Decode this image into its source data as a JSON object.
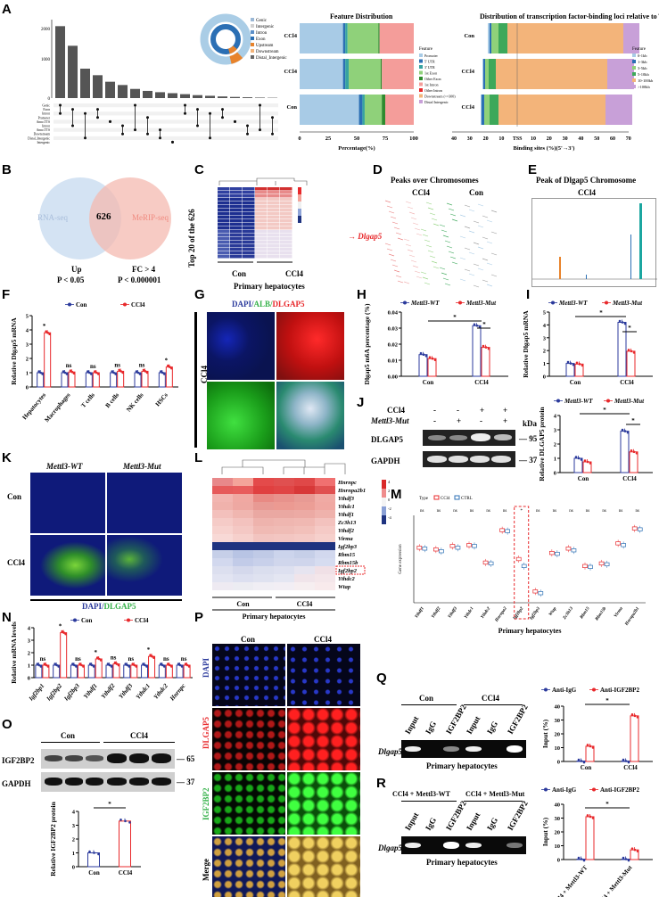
{
  "panel_letters": {
    "A": "A",
    "B": "B",
    "C": "C",
    "D": "D",
    "E": "E",
    "F": "F",
    "G": "G",
    "H": "H",
    "I": "I",
    "J": "J",
    "K": "K",
    "L": "L",
    "M": "M",
    "N": "N",
    "O": "O",
    "P": "P",
    "Q": "Q",
    "R": "R"
  },
  "colors": {
    "red": "#e8282b",
    "blue": "#2b3a9c",
    "green": "#36b24a",
    "cyan": "#1ba6a0",
    "salmon": "#f4a49a",
    "pink": "#f7c1bc",
    "lightblue": "#aacde6",
    "navy": "#1f3380"
  },
  "A": {
    "upset_yticks": [
      "2000",
      "1000",
      "0"
    ],
    "upset_rows": [
      "Genic",
      "Exon",
      "Intron",
      "Promoter",
      "Anno.TTS",
      "Intron",
      "Anno.TTS",
      "Downstream",
      "Distal_Intergenic",
      "Intergenic"
    ],
    "donut_legend": [
      "Genic",
      "Intergenic",
      "Intron",
      "Exon",
      "Upstream",
      "Downstream",
      "Distal_Intergenic"
    ],
    "fd_title": "Feature Distribution",
    "fd_rows": [
      "CCl4",
      "CCl4",
      "Con"
    ],
    "fd_xticks": [
      "0",
      "25",
      "50",
      "75",
      "100"
    ],
    "fd_xlabel": "Percentage(%)",
    "fd_legend_title": "Feature",
    "fd_legend": [
      "Promoter",
      "5' UTR",
      "3' UTR",
      "1st Exon",
      "Other Exon",
      "1st Intron",
      "Other Intron",
      "Downstream (<=300)",
      "Distal Intergenic"
    ],
    "tss_title": "Distribution of transcription factor-binding loci relative to TSS",
    "tss_rows": [
      "Con",
      "CCl4",
      "CCl4"
    ],
    "tss_xticks": [
      "40",
      "30",
      "20",
      "10",
      "TSS",
      "10",
      "20",
      "30",
      "40",
      "50",
      "60",
      "70"
    ],
    "tss_xlabel": "Binding sites (%)(5'→3')",
    "tss_legend_title": "Feature",
    "tss_legend": [
      "0-1kb",
      "1-3kb",
      "3-5kb",
      "5-10kb",
      "10-100kb",
      ">100kb"
    ]
  },
  "B": {
    "left": "RNA-seq",
    "overlap": "626",
    "right": "MeRIP-seq",
    "left_sub1": "Up",
    "left_sub2": "P < 0.05",
    "right_sub1": "FC > 4",
    "right_sub2": "P < 0.000001"
  },
  "C": {
    "ylabel": "Top 20 of the 626",
    "arrow_label": "Dlgap5",
    "groups": [
      "Con",
      "CCl4"
    ],
    "xlabel": "Primary hepatocytes"
  },
  "D": {
    "title": "Peaks over Chromosomes",
    "groups": [
      "CCl4",
      "Con"
    ]
  },
  "E": {
    "title": "Peak of Dlgap5 Chromosome",
    "group": "CCl4"
  },
  "F": {
    "ylabel": "Relative Dlgap5 mRNA",
    "legend": [
      "Con",
      "CCl4"
    ],
    "yticks": [
      "5",
      "4",
      "3",
      "2",
      "1",
      "0"
    ],
    "categories": [
      "Hepatocytes",
      "Macrophages",
      "T cells",
      "B cells",
      "NK cells",
      "HSCs"
    ],
    "con": [
      1.0,
      1.0,
      1.0,
      1.0,
      1.0,
      1.0
    ],
    "ccl4": [
      3.8,
      1.05,
      1.0,
      1.1,
      1.1,
      1.4
    ],
    "sig": [
      "*",
      "ns",
      "ns",
      "ns",
      "ns",
      "*"
    ]
  },
  "G": {
    "title_parts": [
      "DAPI/",
      "ALB/",
      "DLGAP5"
    ],
    "row_label": "CCl4"
  },
  "H": {
    "ylabel": "Dlgap5 m6A percentage (%)",
    "legend": [
      "Mettl3-WT",
      "Mettl3-Mut"
    ],
    "yticks": [
      "0.04",
      "0.03",
      "0.02",
      "0.01",
      "0.00"
    ],
    "categories": [
      "Con",
      "CCl4"
    ],
    "wt": [
      0.0135,
      0.0315
    ],
    "mut": [
      0.011,
      0.018
    ],
    "sig": [
      "*",
      "*"
    ]
  },
  "I": {
    "ylabel": "Relative Dlgap5 mRNA",
    "legend": [
      "Mettl3-WT",
      "Mettl3-Mut"
    ],
    "yticks": [
      "5",
      "4",
      "3",
      "2",
      "1",
      "0"
    ],
    "categories": [
      "Con",
      "CCl4"
    ],
    "wt": [
      1.0,
      4.2
    ],
    "mut": [
      0.95,
      1.95
    ],
    "sig": [
      "*",
      "*"
    ]
  },
  "J": {
    "rows": [
      "CCl4",
      "Mettl3-Mut"
    ],
    "row1": [
      "-",
      "-",
      "+",
      "+"
    ],
    "row2": [
      "-",
      "+",
      "-",
      "+"
    ],
    "kda": "kDa",
    "blots": [
      {
        "name": "DLGAP5",
        "mw": "95"
      },
      {
        "name": "GAPDH",
        "mw": "37"
      }
    ],
    "quant": {
      "ylabel": "Relative DLGAP5 protein",
      "legend": [
        "Mettl3-WT",
        "Mettl3-Mut"
      ],
      "yticks": [
        "4",
        "3",
        "2",
        "1",
        "0"
      ],
      "categories": [
        "Con",
        "CCl4"
      ],
      "wt": [
        1.0,
        2.9
      ],
      "mut": [
        0.75,
        1.45
      ],
      "sig": [
        "*",
        "*"
      ]
    }
  },
  "K": {
    "cols": [
      "Mettl3-WT",
      "Mettl3-Mut"
    ],
    "rows": [
      "Con",
      "CCl4"
    ],
    "caption_parts": [
      "DAPI/",
      "DLGAP5"
    ]
  },
  "L": {
    "genes": [
      "Hnrnpc",
      "Hnrnpa2b1",
      "Ythdf3",
      "Ythdc1",
      "Ythdf1",
      "Zc3h13",
      "Ythdf2",
      "Virma",
      "Igf2bp3",
      "Rbm15",
      "Rbm15b",
      "Igf2bp2",
      "Ythdc2",
      "Wtap"
    ],
    "groups": [
      "Con",
      "CCl4"
    ],
    "xlabel": "Primary hepatocytes",
    "scale": [
      "4",
      "2",
      "0",
      "-2",
      "-4"
    ]
  },
  "M": {
    "legend_title": "Type",
    "legend": [
      "CCl4",
      "CTRL"
    ],
    "ylabel": "Gene expression",
    "genes": [
      "Ythdf1",
      "Ythdf2",
      "Ythdf3",
      "Ythdc1",
      "Ythdc2",
      "Hnrnpa2",
      "Igf2bp2",
      "Igf2bp3",
      "Wtap",
      "Zc3h13",
      "Rbm15",
      "Rbm15b",
      "Virma",
      "Hnrnpa2b1"
    ],
    "sig": [
      "ns",
      "ns",
      "ns",
      "ns",
      "ns",
      "ns",
      "*",
      "ns",
      "ns",
      "ns",
      "ns",
      "ns",
      "ns",
      "ns"
    ],
    "ccl4": [
      6.3,
      6.1,
      6.5,
      6.6,
      4.6,
      8.3,
      5.0,
      1.3,
      5.7,
      6.2,
      4.2,
      4.5,
      6.8,
      8.5
    ],
    "ctrl": [
      6.2,
      5.9,
      6.3,
      6.5,
      4.5,
      8.2,
      4.2,
      1.1,
      5.6,
      6.0,
      4.1,
      4.4,
      6.6,
      8.4
    ],
    "xlabel": "Primary hepatocytes"
  },
  "N": {
    "ylabel": "Relative mRNA levels",
    "legend": [
      "Con",
      "CCl4"
    ],
    "yticks": [
      "4",
      "3",
      "2",
      "1",
      "0"
    ],
    "categories": [
      "Igf2bp1",
      "Igf2bp2",
      "Igf2bp3",
      "Ythdf1",
      "Ythdf2",
      "Ythdf3",
      "Ythdc1",
      "Ythdc2",
      "Hnrnpc"
    ],
    "con": [
      1,
      1,
      1,
      1,
      1,
      1,
      1,
      1,
      1
    ],
    "ccl4": [
      1.0,
      3.6,
      1.0,
      1.5,
      1.1,
      1.0,
      1.7,
      1.0,
      1.0
    ],
    "sig": [
      "ns",
      "*",
      "ns",
      "*",
      "ns",
      "ns",
      "*",
      "ns",
      "ns"
    ]
  },
  "O": {
    "groups": [
      "Con",
      "CCl4"
    ],
    "blots": [
      {
        "name": "IGF2BP2",
        "mw": "65"
      },
      {
        "name": "GAPDH",
        "mw": "37"
      }
    ],
    "quant": {
      "ylabel": "Relative IGF2BP2 protein",
      "yticks": [
        "4",
        "3",
        "2",
        "1",
        "0"
      ],
      "categories": [
        "Con",
        "CCl4"
      ],
      "values": [
        1.0,
        3.3
      ],
      "sig": "*"
    }
  },
  "P": {
    "cols": [
      "Con",
      "CCl4"
    ],
    "rows": [
      "DAPI",
      "DLGAP5",
      "IGF2BP2",
      "Merge"
    ]
  },
  "Q": {
    "groups": [
      "Con",
      "CCl4"
    ],
    "lanes": [
      "Input",
      "IgG",
      "IGF2BP2",
      "Input",
      "IgG",
      "IGF2BP2"
    ],
    "gene": "Dlgap5",
    "xlabel": "Primary hepatocytes",
    "chart": {
      "legend": [
        "Anti-IgG",
        "Anti-IGF2BP2"
      ],
      "ylabel": "Input (%)",
      "yticks": [
        "40",
        "30",
        "20",
        "10",
        "0"
      ],
      "categories": [
        "Con",
        "CCl4"
      ],
      "igg": [
        0.3,
        0.3
      ],
      "anti": [
        11,
        33
      ],
      "sig": "*"
    }
  },
  "R": {
    "groups": [
      "CCl4 + Mettl3-WT",
      "CCl4 + Mettl3-Mut"
    ],
    "lanes": [
      "Input",
      "IgG",
      "IGF2BP2",
      "Input",
      "IgG",
      "IGF2BP2"
    ],
    "gene": "Dlgap5",
    "xlabel": "Primary hepatocytes",
    "chart": {
      "legend": [
        "Anti-IgG",
        "Anti-IGF2BP2"
      ],
      "ylabel": "Input (%)",
      "yticks": [
        "40",
        "30",
        "20",
        "10",
        "0"
      ],
      "categories": [
        "CCl4 + Mettl3-WT",
        "CCl4 + Mettl3-Mut"
      ],
      "igg": [
        0.3,
        0.3
      ],
      "anti": [
        31,
        7
      ],
      "sig": "*"
    }
  },
  "chart_data": [
    {
      "type": "bar",
      "title": "",
      "ylabel": "Relative Dlgap5 mRNA",
      "categories": [
        "Hepatocytes",
        "Macrophages",
        "T cells",
        "B cells",
        "NK cells",
        "HSCs"
      ],
      "series": [
        {
          "name": "Con",
          "values": [
            1.0,
            1.0,
            1.0,
            1.0,
            1.0,
            1.0
          ]
        },
        {
          "name": "CCl4",
          "values": [
            3.8,
            1.05,
            1.0,
            1.1,
            1.1,
            1.4
          ]
        }
      ],
      "ylim": [
        0,
        5
      ]
    },
    {
      "type": "bar",
      "title": "",
      "ylabel": "Dlgap5 m6A percentage (%)",
      "categories": [
        "Con",
        "CCl4"
      ],
      "series": [
        {
          "name": "Mettl3-WT",
          "values": [
            0.0135,
            0.0315
          ]
        },
        {
          "name": "Mettl3-Mut",
          "values": [
            0.011,
            0.018
          ]
        }
      ],
      "ylim": [
        0,
        0.04
      ]
    },
    {
      "type": "bar",
      "title": "",
      "ylabel": "Relative Dlgap5 mRNA",
      "categories": [
        "Con",
        "CCl4"
      ],
      "series": [
        {
          "name": "Mettl3-WT",
          "values": [
            1.0,
            4.2
          ]
        },
        {
          "name": "Mettl3-Mut",
          "values": [
            0.95,
            1.95
          ]
        }
      ],
      "ylim": [
        0,
        5
      ]
    },
    {
      "type": "bar",
      "title": "",
      "ylabel": "Relative DLGAP5 protein",
      "categories": [
        "Con",
        "CCl4"
      ],
      "series": [
        {
          "name": "Mettl3-WT",
          "values": [
            1.0,
            2.9
          ]
        },
        {
          "name": "Mettl3-Mut",
          "values": [
            0.75,
            1.45
          ]
        }
      ],
      "ylim": [
        0,
        4
      ]
    },
    {
      "type": "bar",
      "title": "",
      "ylabel": "Relative mRNA levels",
      "categories": [
        "Igf2bp1",
        "Igf2bp2",
        "Igf2bp3",
        "Ythdf1",
        "Ythdf2",
        "Ythdf3",
        "Ythdc1",
        "Ythdc2",
        "Hnrnpc"
      ],
      "series": [
        {
          "name": "Con",
          "values": [
            1,
            1,
            1,
            1,
            1,
            1,
            1,
            1,
            1
          ]
        },
        {
          "name": "CCl4",
          "values": [
            1.0,
            3.6,
            1.0,
            1.5,
            1.1,
            1.0,
            1.7,
            1.0,
            1.0
          ]
        }
      ],
      "ylim": [
        0,
        4
      ]
    },
    {
      "type": "bar",
      "title": "",
      "ylabel": "Relative IGF2BP2 protein",
      "categories": [
        "Con",
        "CCl4"
      ],
      "values": [
        1.0,
        3.3
      ],
      "ylim": [
        0,
        4
      ]
    },
    {
      "type": "bar",
      "title": "",
      "ylabel": "Input (%)",
      "categories": [
        "Con",
        "CCl4"
      ],
      "series": [
        {
          "name": "Anti-IgG",
          "values": [
            0.3,
            0.3
          ]
        },
        {
          "name": "Anti-IGF2BP2",
          "values": [
            11,
            33
          ]
        }
      ],
      "ylim": [
        0,
        40
      ]
    },
    {
      "type": "bar",
      "title": "",
      "ylabel": "Input (%)",
      "categories": [
        "CCl4 + Mettl3-WT",
        "CCl4 + Mettl3-Mut"
      ],
      "series": [
        {
          "name": "Anti-IgG",
          "values": [
            0.3,
            0.3
          ]
        },
        {
          "name": "Anti-IGF2BP2",
          "values": [
            31,
            7
          ]
        }
      ],
      "ylim": [
        0,
        40
      ]
    }
  ]
}
